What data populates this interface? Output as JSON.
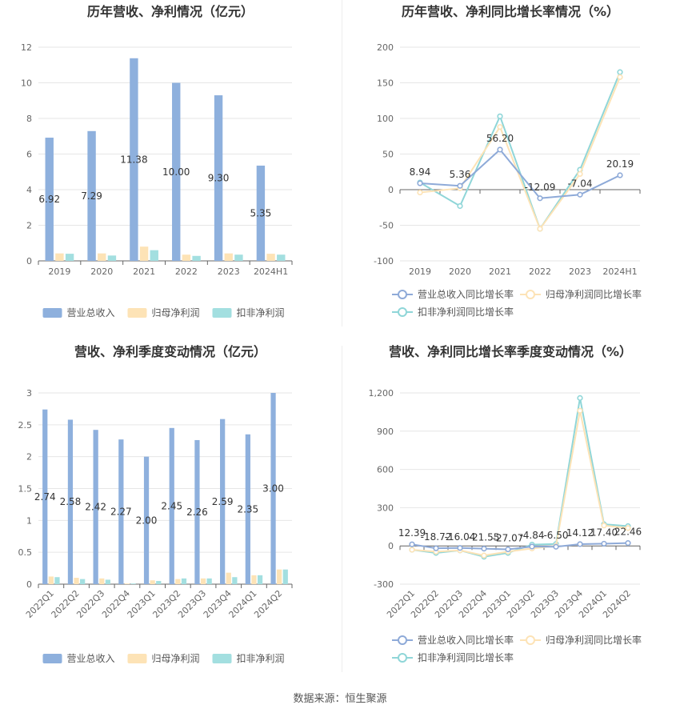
{
  "source": "数据来源：恒生聚源",
  "chart_data": [
    {
      "id": "annual_revenue_profit",
      "type": "bar",
      "title": "历年营收、净利情况（亿元）",
      "categories": [
        "2019",
        "2020",
        "2021",
        "2022",
        "2023",
        "2024H1"
      ],
      "ylim": [
        0,
        12
      ],
      "yticks": [
        "0",
        "2",
        "4",
        "6",
        "8",
        "10",
        "12"
      ],
      "grid": true,
      "legend": "bottom",
      "series": [
        {
          "name": "营业总收入",
          "color": "#8eb0dd",
          "values": [
            6.92,
            7.29,
            11.38,
            10.0,
            9.3,
            5.35
          ],
          "labels": [
            "6.92",
            "7.29",
            "11.38",
            "10.00",
            "9.30",
            "5.35"
          ]
        },
        {
          "name": "归母净利润",
          "color": "#fde3b6",
          "values": [
            0.42,
            0.42,
            0.8,
            0.35,
            0.42,
            0.4
          ]
        },
        {
          "name": "扣非净利润",
          "color": "#a3dfe0",
          "values": [
            0.4,
            0.3,
            0.6,
            0.28,
            0.35,
            0.35
          ]
        }
      ]
    },
    {
      "id": "annual_growth",
      "type": "line",
      "title": "历年营收、净利同比增长率情况（%）",
      "categories": [
        "2019",
        "2020",
        "2021",
        "2022",
        "2023",
        "2024H1"
      ],
      "ylim": [
        -100,
        200
      ],
      "yticks": [
        "-100",
        "-50",
        "0",
        "50",
        "100",
        "150",
        "200"
      ],
      "grid": true,
      "legend": "bottom",
      "series": [
        {
          "name": "营业总收入同比增长率",
          "color": "#8eaad8",
          "values": [
            8.94,
            5.36,
            56.2,
            -12.09,
            -7.04,
            20.19
          ],
          "labels": [
            "8.94",
            "5.36",
            "56.20",
            "-12.09",
            "-7.04",
            "20.19"
          ]
        },
        {
          "name": "归母净利润同比增长率",
          "color": "#fde3b6",
          "values": [
            -4,
            2,
            88,
            -55,
            22,
            158
          ]
        },
        {
          "name": "扣非净利润同比增长率",
          "color": "#8fd6d8",
          "values": [
            10,
            -23,
            103,
            -55,
            28,
            165
          ]
        }
      ]
    },
    {
      "id": "quarterly_revenue_profit",
      "type": "bar",
      "title": "营收、净利季度变动情况（亿元）",
      "categories": [
        "2022Q1",
        "2022Q2",
        "2022Q3",
        "2022Q4",
        "2023Q1",
        "2023Q2",
        "2023Q3",
        "2023Q4",
        "2024Q1",
        "2024Q2"
      ],
      "ylim": [
        0,
        3
      ],
      "yticks": [
        "0",
        "0.5",
        "1",
        "1.5",
        "2",
        "2.5",
        "3"
      ],
      "grid": true,
      "legend": "bottom",
      "series": [
        {
          "name": "营业总收入",
          "color": "#8eb0dd",
          "values": [
            2.74,
            2.58,
            2.42,
            2.27,
            2.0,
            2.45,
            2.26,
            2.59,
            2.35,
            3.0
          ],
          "labels": [
            "2.74",
            "2.58",
            "2.42",
            "2.27",
            "2.00",
            "2.45",
            "2.26",
            "2.59",
            "2.35",
            "3.00"
          ]
        },
        {
          "name": "归母净利润",
          "color": "#fde3b6",
          "values": [
            0.12,
            0.1,
            0.09,
            0.01,
            0.06,
            0.08,
            0.09,
            0.18,
            0.14,
            0.23
          ]
        },
        {
          "name": "扣非净利润",
          "color": "#a3dfe0",
          "values": [
            0.11,
            0.08,
            0.07,
            0.01,
            0.05,
            0.09,
            0.09,
            0.11,
            0.14,
            0.23
          ]
        }
      ]
    },
    {
      "id": "quarterly_growth",
      "type": "line",
      "title": "营收、净利同比增长率季度变动情况（%）",
      "categories": [
        "2022Q1",
        "2022Q2",
        "2022Q3",
        "2022Q4",
        "2023Q1",
        "2023Q2",
        "2023Q3",
        "2023Q4",
        "2024Q1",
        "2024Q2"
      ],
      "ylim": [
        -300,
        1200
      ],
      "yticks": [
        "-300",
        "0",
        "300",
        "600",
        "900",
        "1,200"
      ],
      "grid": true,
      "legend": "bottom",
      "series": [
        {
          "name": "营业总收入同比增长率",
          "color": "#8eaad8",
          "values": [
            12.39,
            -18.72,
            -16.04,
            -21.55,
            -27.07,
            -4.84,
            -6.5,
            14.12,
            17.4,
            22.46
          ],
          "labels": [
            "12.39",
            "-18.72",
            "-16.04",
            "-21.55",
            "-27.07",
            "-4.84",
            "-6.50",
            "14.12",
            "17.40",
            "22.46"
          ]
        },
        {
          "name": "归母净利润同比增长率",
          "color": "#fde3b6",
          "values": [
            -30,
            -45,
            -35,
            -75,
            -45,
            -20,
            0,
            1060,
            160,
            140
          ]
        },
        {
          "name": "扣非净利润同比增长率",
          "color": "#8fd6d8",
          "values": [
            -30,
            -55,
            -35,
            -85,
            -55,
            10,
            15,
            1160,
            170,
            155
          ]
        }
      ]
    }
  ]
}
